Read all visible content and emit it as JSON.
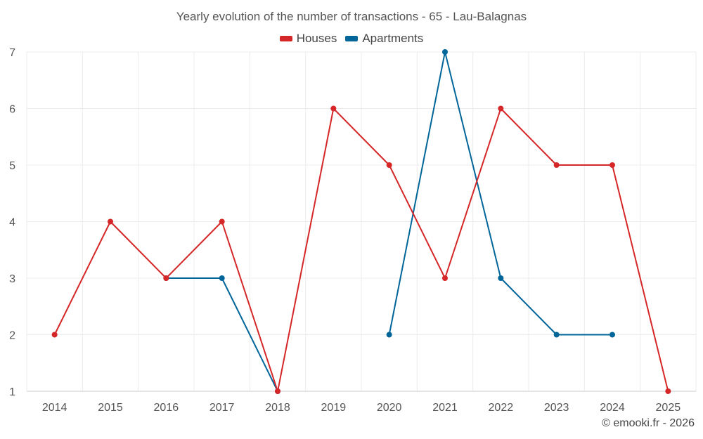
{
  "chart_data": {
    "type": "line",
    "title": "Yearly evolution of the number of transactions - 65 - Lau-Balagnas",
    "categories": [
      "2014",
      "2015",
      "2016",
      "2017",
      "2018",
      "2019",
      "2020",
      "2021",
      "2022",
      "2023",
      "2024",
      "2025"
    ],
    "ylim": [
      1,
      7
    ],
    "yticks": [
      1,
      2,
      3,
      4,
      5,
      6,
      7
    ],
    "grid": true,
    "legend_position": "top-center",
    "series": [
      {
        "name": "Houses",
        "color": "#d62728",
        "values": [
          2,
          4,
          3,
          4,
          1,
          6,
          5,
          3,
          6,
          5,
          5,
          1
        ]
      },
      {
        "name": "Apartments",
        "color": "#006699",
        "values": [
          null,
          null,
          3,
          3,
          1,
          null,
          2,
          7,
          3,
          2,
          2,
          null
        ]
      }
    ]
  },
  "credit": "© emooki.fr - 2026"
}
